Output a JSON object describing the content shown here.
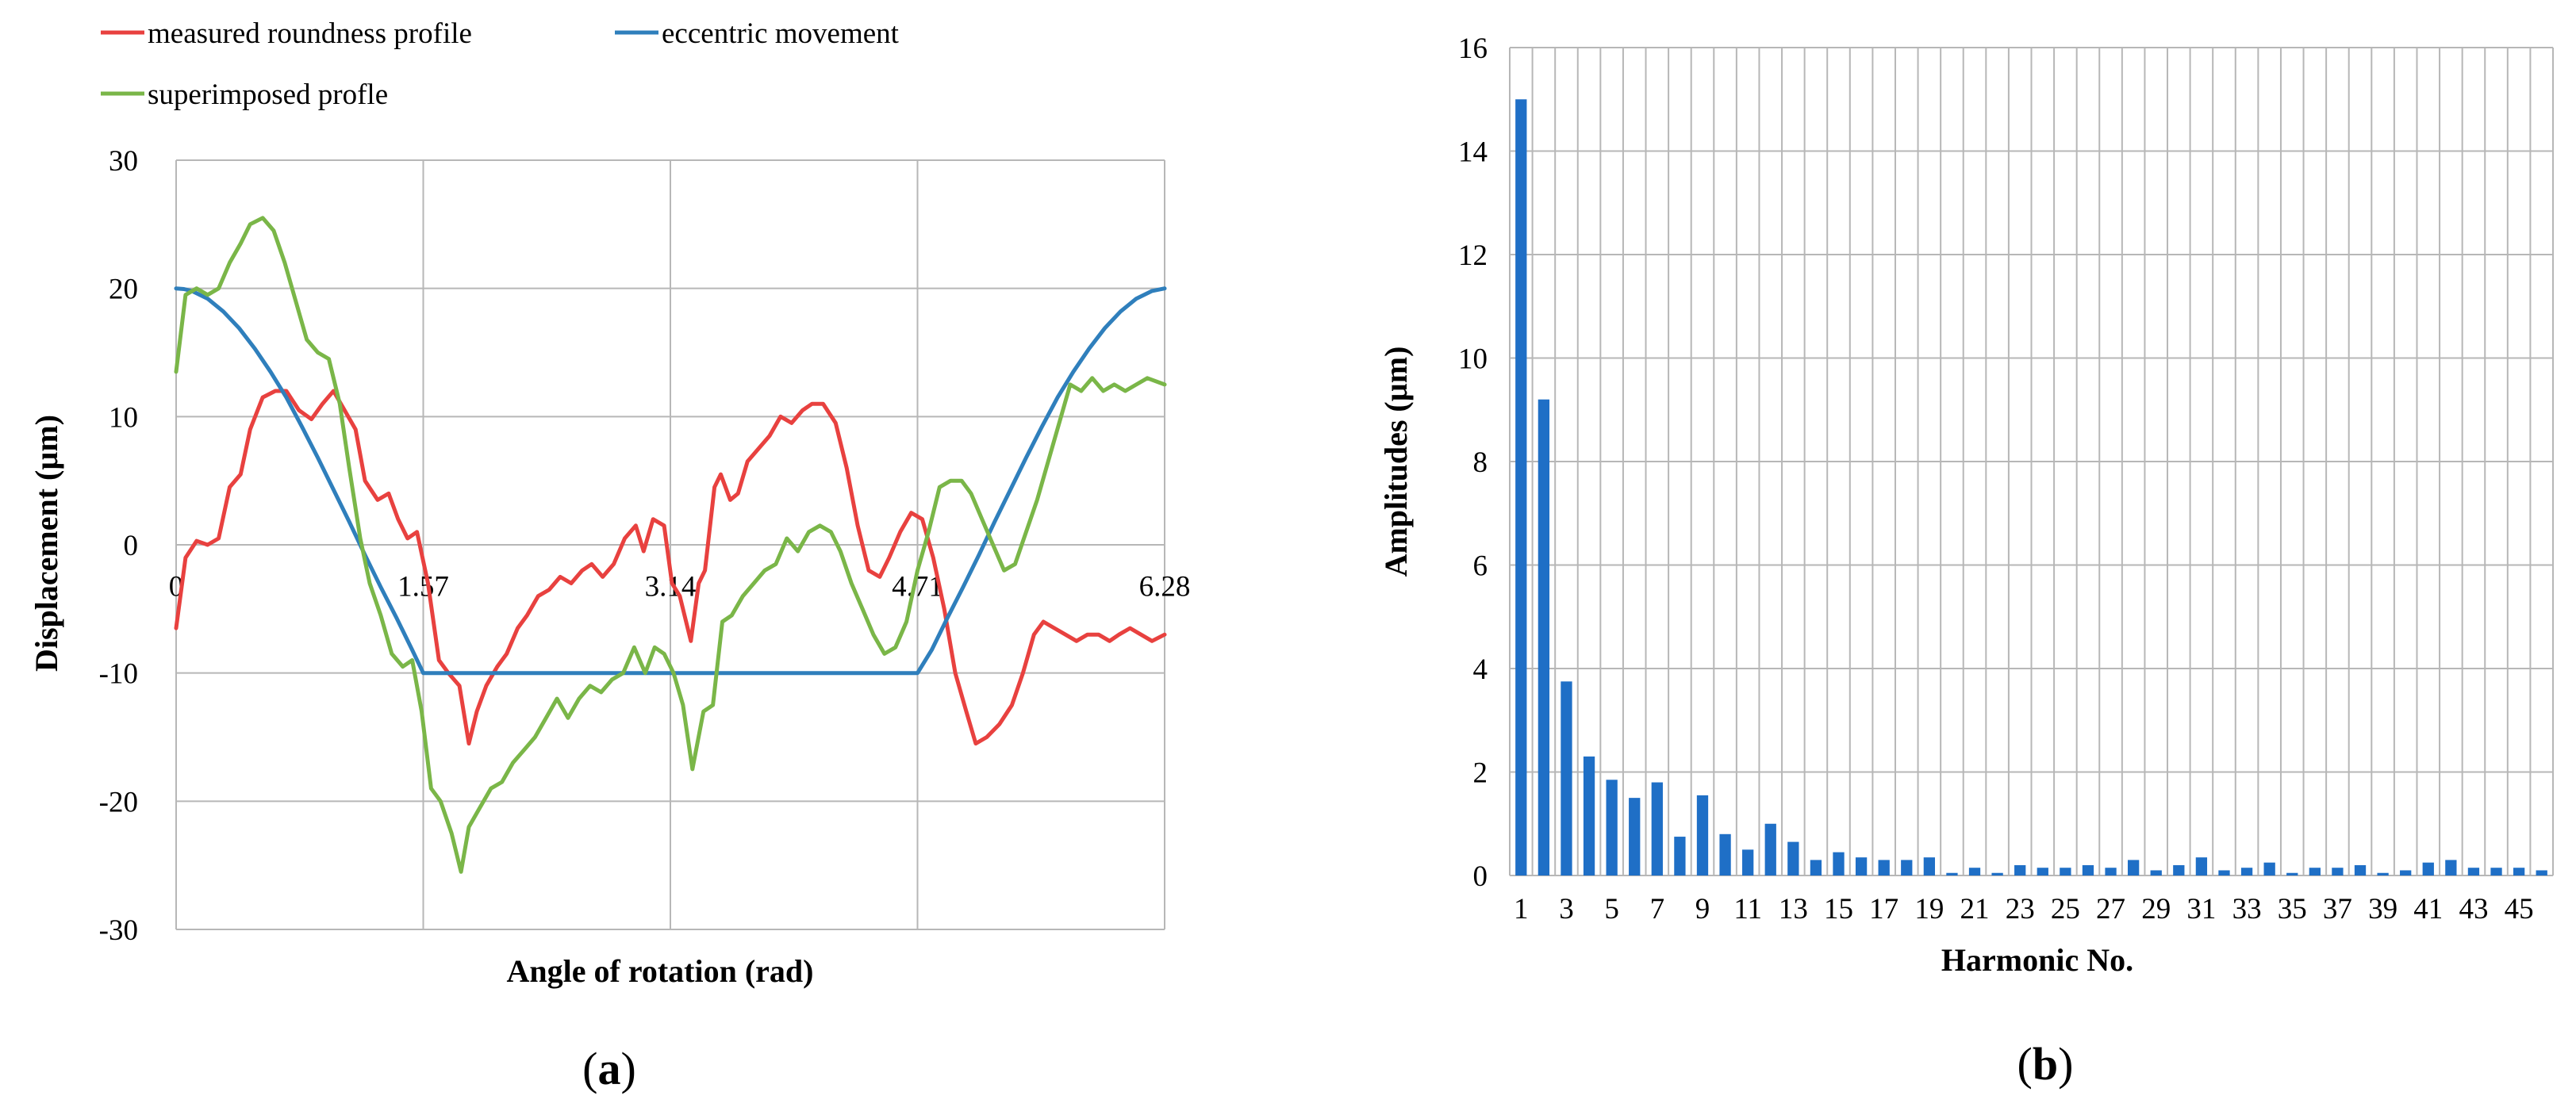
{
  "chart_data": [
    {
      "panel": "(a)",
      "type": "line",
      "xlabel": "Angle of rotation (rad)",
      "ylabel": "Displacement (µm)",
      "xlim": [
        0,
        6.28
      ],
      "ylim": [
        -30,
        30
      ],
      "y_ticks": [
        -30,
        -20,
        -10,
        0,
        10,
        20,
        30
      ],
      "x_tick_labels": [
        {
          "value": 0,
          "label": "0"
        },
        {
          "value": 1.57,
          "label": "1.57"
        },
        {
          "value": 3.14,
          "label": "3.14"
        },
        {
          "value": 4.71,
          "label": "4.71"
        },
        {
          "value": 6.28,
          "label": "6.28"
        }
      ],
      "grid": true,
      "legend_position": "top-left",
      "series": [
        {
          "name": "measured roundness profile",
          "color": "#e8413f",
          "x": [
            0,
            0.06,
            0.13,
            0.2,
            0.27,
            0.34,
            0.41,
            0.47,
            0.55,
            0.63,
            0.7,
            0.78,
            0.86,
            0.93,
            1.0,
            1.07,
            1.14,
            1.2,
            1.28,
            1.35,
            1.41,
            1.47,
            1.53,
            1.6,
            1.67,
            1.73,
            1.8,
            1.86,
            1.91,
            1.97,
            2.04,
            2.1,
            2.17,
            2.23,
            2.3,
            2.37,
            2.44,
            2.51,
            2.58,
            2.64,
            2.71,
            2.78,
            2.85,
            2.92,
            2.97,
            3.03,
            3.1,
            3.15,
            3.2,
            3.27,
            3.32,
            3.36,
            3.42,
            3.46,
            3.52,
            3.57,
            3.63,
            3.7,
            3.77,
            3.84,
            3.91,
            3.98,
            4.04,
            4.11,
            4.19,
            4.26,
            4.33,
            4.4,
            4.47,
            4.53,
            4.6,
            4.67,
            4.74,
            4.81,
            4.88,
            4.95,
            5.02,
            5.08,
            5.15,
            5.23,
            5.31,
            5.38,
            5.45,
            5.51,
            5.58,
            5.65,
            5.72,
            5.79,
            5.86,
            5.93,
            5.99,
            6.06,
            6.13,
            6.2,
            6.28
          ],
          "values": [
            -6.5,
            -1,
            0.3,
            0,
            0.5,
            4.5,
            5.5,
            9,
            11.5,
            12,
            12,
            10.5,
            9.8,
            11,
            12,
            10.5,
            9,
            5,
            3.5,
            4,
            2,
            0.5,
            1,
            -3,
            -9,
            -10,
            -11,
            -15.5,
            -13,
            -11,
            -9.5,
            -8.5,
            -6.5,
            -5.5,
            -4,
            -3.5,
            -2.5,
            -3,
            -2,
            -1.5,
            -2.5,
            -1.5,
            0.5,
            1.5,
            -0.5,
            2,
            1.5,
            -3,
            -4,
            -7.5,
            -3,
            -2,
            4.5,
            5.5,
            3.5,
            4,
            6.5,
            7.5,
            8.5,
            10,
            9.5,
            10.5,
            11,
            11,
            9.5,
            6,
            1.5,
            -2,
            -2.5,
            -1,
            1,
            2.5,
            2,
            -1,
            -5,
            -10,
            -13,
            -15.5,
            -15,
            -14,
            -12.5,
            -10,
            -7,
            -6,
            -6.5,
            -7,
            -7.5,
            -7,
            -7,
            -7.5,
            -7,
            -6.5,
            -7,
            -7.5,
            -7
          ]
        },
        {
          "name": "eccentric movement",
          "color": "#2f7fbc",
          "x": [
            0,
            0.05,
            0.1,
            0.2,
            0.3,
            0.4,
            0.5,
            0.6,
            0.7,
            0.8,
            0.9,
            1.0,
            1.1,
            1.2,
            1.3,
            1.4,
            1.5,
            1.57,
            2.0,
            3.0,
            4.0,
            4.71,
            4.8,
            4.9,
            5.0,
            5.1,
            5.2,
            5.3,
            5.4,
            5.5,
            5.6,
            5.7,
            5.8,
            5.9,
            6.0,
            6.1,
            6.2,
            6.28
          ],
          "values": [
            20,
            19.95,
            19.8,
            19.2,
            18.2,
            16.9,
            15.3,
            13.5,
            11.5,
            9.2,
            6.8,
            4.3,
            1.8,
            -0.8,
            -3.3,
            -5.7,
            -8.2,
            -10,
            -10,
            -10,
            -10,
            -10,
            -8.2,
            -5.7,
            -3.3,
            -0.8,
            1.8,
            4.3,
            6.8,
            9.2,
            11.5,
            13.5,
            15.3,
            16.9,
            18.2,
            19.2,
            19.8,
            20
          ]
        },
        {
          "name": "superimposed profle",
          "color": "#7ab648",
          "x": [
            0,
            0.06,
            0.13,
            0.2,
            0.27,
            0.34,
            0.41,
            0.47,
            0.55,
            0.62,
            0.69,
            0.76,
            0.83,
            0.9,
            0.97,
            1.04,
            1.1,
            1.17,
            1.23,
            1.3,
            1.37,
            1.44,
            1.5,
            1.56,
            1.62,
            1.68,
            1.75,
            1.81,
            1.86,
            1.93,
            2.0,
            2.07,
            2.14,
            2.21,
            2.28,
            2.35,
            2.42,
            2.49,
            2.56,
            2.63,
            2.7,
            2.77,
            2.84,
            2.91,
            2.98,
            3.04,
            3.1,
            3.16,
            3.22,
            3.28,
            3.35,
            3.41,
            3.47,
            3.53,
            3.6,
            3.67,
            3.74,
            3.81,
            3.88,
            3.95,
            4.02,
            4.09,
            4.16,
            4.22,
            4.29,
            4.36,
            4.43,
            4.5,
            4.57,
            4.64,
            4.71,
            4.78,
            4.85,
            4.92,
            4.99,
            5.05,
            5.12,
            5.19,
            5.26,
            5.33,
            5.4,
            5.47,
            5.54,
            5.61,
            5.68,
            5.75,
            5.82,
            5.89,
            5.96,
            6.03,
            6.1,
            6.17,
            6.28
          ],
          "values": [
            13.5,
            19.5,
            20,
            19.5,
            20,
            22,
            23.5,
            25,
            25.5,
            24.5,
            22,
            19,
            16,
            15,
            14.5,
            11,
            6,
            0.5,
            -3,
            -5.5,
            -8.5,
            -9.5,
            -9,
            -13,
            -19,
            -20,
            -22.5,
            -25.5,
            -22,
            -20.5,
            -19,
            -18.5,
            -17,
            -16,
            -15,
            -13.5,
            -12,
            -13.5,
            -12,
            -11,
            -11.5,
            -10.5,
            -10,
            -8,
            -10,
            -8,
            -8.5,
            -10,
            -12.5,
            -17.5,
            -13,
            -12.5,
            -6,
            -5.5,
            -4,
            -3,
            -2,
            -1.5,
            0.5,
            -0.5,
            1,
            1.5,
            1,
            -0.5,
            -3,
            -5,
            -7,
            -8.5,
            -8,
            -6,
            -2,
            1,
            4.5,
            5,
            5,
            4,
            2,
            0,
            -2,
            -1.5,
            1,
            3.5,
            6.5,
            9.5,
            12.5,
            12,
            13,
            12,
            12.5,
            12,
            12.5,
            13,
            12.5
          ]
        }
      ]
    },
    {
      "panel": "(b)",
      "type": "bar",
      "xlabel": "Harmonic No.",
      "ylabel": "Amplitudes (µm)",
      "ylim": [
        0,
        16
      ],
      "y_ticks": [
        0,
        2,
        4,
        6,
        8,
        10,
        12,
        14,
        16
      ],
      "grid": true,
      "bar_color": "#1f6fc6",
      "categories": [
        1,
        2,
        3,
        4,
        5,
        6,
        7,
        8,
        9,
        10,
        11,
        12,
        13,
        14,
        15,
        16,
        17,
        18,
        19,
        20,
        21,
        22,
        23,
        24,
        25,
        26,
        27,
        28,
        29,
        30,
        31,
        32,
        33,
        34,
        35,
        36,
        37,
        38,
        39,
        40,
        41,
        42,
        43,
        44,
        45,
        46
      ],
      "x_tick_labels": [
        "1",
        "3",
        "5",
        "7",
        "9",
        "11",
        "13",
        "15",
        "17",
        "19",
        "21",
        "23",
        "25",
        "27",
        "29",
        "31",
        "33",
        "35",
        "37",
        "39",
        "41",
        "43",
        "45"
      ],
      "values": [
        15,
        9.2,
        3.75,
        2.3,
        1.85,
        1.5,
        1.8,
        0.75,
        1.55,
        0.8,
        0.5,
        1.0,
        0.65,
        0.3,
        0.45,
        0.35,
        0.3,
        0.3,
        0.35,
        0.05,
        0.15,
        0.05,
        0.2,
        0.15,
        0.15,
        0.2,
        0.15,
        0.3,
        0.1,
        0.2,
        0.35,
        0.1,
        0.15,
        0.25,
        0.05,
        0.15,
        0.15,
        0.2,
        0.05,
        0.1,
        0.25,
        0.3,
        0.15,
        0.15,
        0.15,
        0.1
      ]
    }
  ],
  "panels": {
    "a_label": "a",
    "b_label": "b"
  }
}
